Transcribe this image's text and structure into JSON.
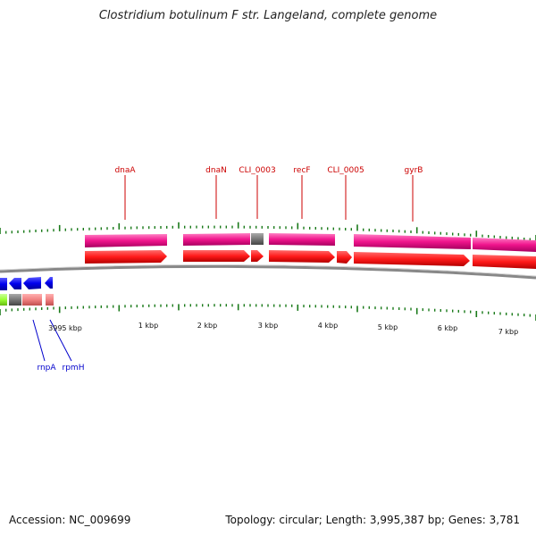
{
  "title": "Clostridium botulinum F str. Langeland, complete genome",
  "footer": {
    "accession": "Accession: NC_009699",
    "summary": "Topology: circular; Length: 3,995,387 bp; Genes: 3,781"
  },
  "colors": {
    "forward_gene": "#ff2020",
    "forward_cds": "#f0148c",
    "pseudo": "#777777",
    "reverse_gene": "#0000ee",
    "reverse_green": "#99ff33",
    "reverse_pink": "#f08080",
    "backbone": "#777777",
    "tick": "#1a7a1a",
    "forward_label": "#cc0000",
    "reverse_label": "#0000cc"
  },
  "scale_labels": [
    "3995 kbp",
    "1 kbp",
    "2 kbp",
    "3 kbp",
    "4 kbp",
    "5 kbp",
    "6 kbp",
    "7 kbp"
  ],
  "forward_genes": [
    {
      "name": "dnaA",
      "start_kbp": 0.0,
      "end_kbp": 1.4
    },
    {
      "name": "dnaN",
      "start_kbp": 1.7,
      "end_kbp": 2.8
    },
    {
      "name": "CLI_0003",
      "start_kbp": 2.8,
      "end_kbp": 3.0
    },
    {
      "name": "recF",
      "start_kbp": 3.1,
      "end_kbp": 4.2
    },
    {
      "name": "CLI_0005",
      "start_kbp": 4.2,
      "end_kbp": 4.5
    },
    {
      "name": "gyrB",
      "start_kbp": 4.5,
      "end_kbp": 6.5
    }
  ],
  "reverse_genes": [
    {
      "name": "rnpA"
    },
    {
      "name": "rpmH"
    }
  ]
}
